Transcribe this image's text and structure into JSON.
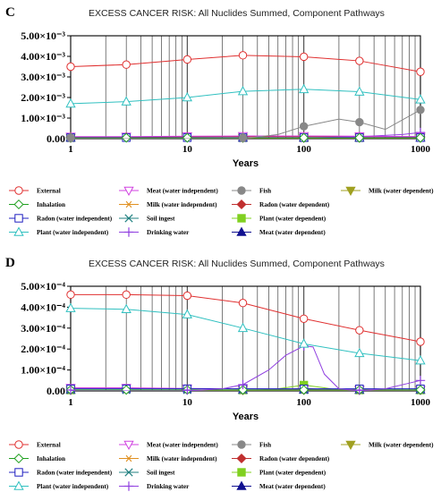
{
  "chart_data": [
    {
      "panel": "C",
      "type": "line",
      "title": "EXCESS CANCER RISK: All Nuclides Summed, Component Pathways",
      "xlabel": "Years",
      "ylabel": "",
      "xscale": "log",
      "xlim": [
        1,
        1000
      ],
      "ylim": [
        0,
        0.005
      ],
      "y_exp": -3,
      "x_ticks": [
        1,
        10,
        100,
        1000
      ],
      "x_tick_labels": [
        "1",
        "10",
        "100",
        "1000"
      ],
      "y_ticks": [
        0,
        0.001,
        0.002,
        0.003,
        0.004,
        0.005
      ],
      "y_tick_labels": [
        "0.00",
        "1.00×10⁻³",
        "2.00×10⁻³",
        "3.00×10⁻³",
        "4.00×10⁻³",
        "5.00×10⁻³"
      ],
      "grid": "vertical",
      "legend_position": "bottom",
      "series": [
        {
          "name": "External",
          "color": "#e03030",
          "marker": "circle",
          "x": [
            1,
            3,
            10,
            30,
            100,
            300,
            1000
          ],
          "y": [
            0.0035,
            0.0036,
            0.00385,
            0.00405,
            0.00398,
            0.00378,
            0.00325
          ]
        },
        {
          "name": "Plant (water independent)",
          "color": "#30c0c0",
          "marker": "triangle-up",
          "x": [
            1,
            3,
            10,
            30,
            100,
            300,
            1000
          ],
          "y": [
            0.0017,
            0.0018,
            0.002,
            0.0023,
            0.0024,
            0.00228,
            0.0019
          ]
        },
        {
          "name": "Fish",
          "color": "#888888",
          "marker": "filled-circle",
          "x": [
            1,
            30,
            60,
            100,
            200,
            300,
            500,
            1000
          ],
          "y": [
            0,
            0,
            0.0002,
            0.0006,
            0.00095,
            0.0008,
            0.00045,
            0.0014
          ]
        },
        {
          "name": "Inhalation",
          "color": "#20a020",
          "marker": "diamond",
          "x": [
            1,
            3,
            10,
            30,
            100,
            300,
            1000
          ],
          "y": [
            3e-05,
            3e-05,
            3e-05,
            3e-05,
            3e-05,
            3e-05,
            3e-05
          ]
        },
        {
          "name": "Radon (water independent)",
          "color": "#2020c0",
          "marker": "square",
          "x": [
            1,
            3,
            10,
            30,
            100,
            300,
            1000
          ],
          "y": [
            5e-05,
            5e-05,
            5e-05,
            5e-05,
            5e-05,
            5e-05,
            5e-05
          ]
        },
        {
          "name": "Meat (water independent)",
          "color": "#d040e0",
          "marker": "triangle-down",
          "x": [
            1,
            3,
            10,
            30,
            100,
            300,
            1000
          ],
          "y": [
            0.0001,
            0.0001,
            0.00012,
            0.00013,
            0.00013,
            0.00012,
            0.0001
          ]
        },
        {
          "name": "Milk (water independent)",
          "color": "#e09020",
          "marker": "asterisk",
          "x": [
            1,
            3,
            10,
            30,
            100,
            300,
            1000
          ],
          "y": [
            2e-05,
            2e-05,
            2e-05,
            2e-05,
            2e-05,
            2e-05,
            2e-05
          ]
        },
        {
          "name": "Soil ingest",
          "color": "#208080",
          "marker": "x",
          "x": [
            1,
            3,
            10,
            30,
            100,
            300,
            1000
          ],
          "y": [
            1e-05,
            1e-05,
            1e-05,
            1e-05,
            1e-05,
            1e-05,
            1e-05
          ]
        },
        {
          "name": "Drinking water",
          "color": "#9040e0",
          "marker": "plus",
          "x": [
            1,
            30,
            100,
            300,
            700,
            1000
          ],
          "y": [
            0,
            0,
            3e-05,
            0.0001,
            0.0002,
            0.0003
          ]
        },
        {
          "name": "Radon (water dependent)",
          "color": "#c03030",
          "marker": "filled-diamond",
          "x": [
            1,
            3,
            10,
            30,
            100,
            300,
            1000
          ],
          "y": [
            8e-05,
            8e-05,
            9e-05,
            0.0001,
            0.0001,
            0.0001,
            9e-05
          ]
        },
        {
          "name": "Plant (water dependent)",
          "color": "#80d020",
          "marker": "filled-square",
          "x": [
            1,
            30,
            100,
            300,
            1000
          ],
          "y": [
            0,
            0,
            2e-05,
            4e-05,
            6e-05
          ]
        },
        {
          "name": "Meat (water dependent)",
          "color": "#101090",
          "marker": "filled-triangle-up",
          "x": [
            1,
            30,
            100,
            300,
            1000
          ],
          "y": [
            0,
            0,
            1e-05,
            1e-05,
            2e-05
          ]
        },
        {
          "name": "Milk (water dependent)",
          "color": "#a0a020",
          "marker": "filled-triangle-down",
          "x": [
            1,
            30,
            100,
            300,
            1000
          ],
          "y": [
            0,
            0,
            1e-05,
            2e-05,
            3e-05
          ]
        }
      ]
    },
    {
      "panel": "D",
      "type": "line",
      "title": "EXCESS CANCER RISK: All Nuclides Summed, Component Pathways",
      "xlabel": "Years",
      "ylabel": "",
      "xscale": "log",
      "xlim": [
        1,
        1000
      ],
      "ylim": [
        0,
        0.0005
      ],
      "y_exp": -4,
      "x_ticks": [
        1,
        10,
        100,
        1000
      ],
      "x_tick_labels": [
        "1",
        "10",
        "100",
        "1000"
      ],
      "y_ticks": [
        0,
        0.0001,
        0.0002,
        0.0003,
        0.0004,
        0.0005
      ],
      "y_tick_labels": [
        "0.00",
        "1.00×10⁻⁴",
        "2.00×10⁻⁴",
        "3.00×10⁻⁴",
        "4.00×10⁻⁴",
        "5.00×10⁻⁴"
      ],
      "grid": "vertical",
      "legend_position": "bottom",
      "series": [
        {
          "name": "External",
          "color": "#e03030",
          "marker": "circle",
          "x": [
            1,
            3,
            10,
            30,
            100,
            300,
            1000
          ],
          "y": [
            0.00046,
            0.00046,
            0.000455,
            0.00042,
            0.000345,
            0.00029,
            0.000235
          ]
        },
        {
          "name": "Plant (water independent)",
          "color": "#30c0c0",
          "marker": "triangle-up",
          "x": [
            1,
            3,
            10,
            30,
            100,
            300,
            1000
          ],
          "y": [
            0.000395,
            0.00039,
            0.000365,
            0.0003,
            0.000225,
            0.00018,
            0.000145
          ]
        },
        {
          "name": "Drinking water",
          "color": "#9040e0",
          "marker": "plus",
          "x": [
            1,
            10,
            20,
            30,
            50,
            70,
            100,
            120,
            150,
            200,
            300,
            500,
            1000
          ],
          "y": [
            0,
            0,
            1e-05,
            3e-05,
            0.0001,
            0.00017,
            0.000215,
            0.00021,
            8e-05,
            1e-05,
            0,
            1e-05,
            5e-05
          ]
        },
        {
          "name": "Inhalation",
          "color": "#20a020",
          "marker": "diamond",
          "x": [
            1,
            3,
            10,
            30,
            100,
            300,
            1000
          ],
          "y": [
            5e-06,
            5e-06,
            5e-06,
            5e-06,
            5e-06,
            5e-06,
            5e-06
          ]
        },
        {
          "name": "Radon (water independent)",
          "color": "#2020c0",
          "marker": "square",
          "x": [
            1,
            3,
            10,
            30,
            100,
            300,
            1000
          ],
          "y": [
            1e-05,
            1e-05,
            1e-05,
            1e-05,
            1e-05,
            1e-05,
            1e-05
          ]
        },
        {
          "name": "Meat (water independent)",
          "color": "#d040e0",
          "marker": "triangle-down",
          "x": [
            1,
            3,
            10,
            30,
            100,
            300,
            1000
          ],
          "y": [
            1.5e-05,
            1.5e-05,
            1.2e-05,
            1e-05,
            8e-06,
            6e-06,
            5e-06
          ]
        },
        {
          "name": "Milk (water independent)",
          "color": "#e09020",
          "marker": "asterisk",
          "x": [
            1,
            3,
            10,
            30,
            100,
            300,
            1000
          ],
          "y": [
            3e-06,
            3e-06,
            3e-06,
            3e-06,
            3e-06,
            3e-06,
            3e-06
          ]
        },
        {
          "name": "Soil ingest",
          "color": "#208080",
          "marker": "x",
          "x": [
            1,
            3,
            10,
            30,
            100,
            300,
            1000
          ],
          "y": [
            2e-06,
            2e-06,
            2e-06,
            2e-06,
            2e-06,
            2e-06,
            2e-06
          ]
        },
        {
          "name": "Fish",
          "color": "#888888",
          "marker": "filled-circle",
          "x": [
            1,
            30,
            100,
            300,
            1000
          ],
          "y": [
            0,
            0,
            5e-06,
            4e-06,
            2e-06
          ]
        },
        {
          "name": "Radon (water dependent)",
          "color": "#c03030",
          "marker": "filled-diamond",
          "x": [
            1,
            30,
            100,
            300,
            1000
          ],
          "y": [
            0,
            0,
            3e-06,
            2e-06,
            1e-06
          ]
        },
        {
          "name": "Plant (water dependent)",
          "color": "#80d020",
          "marker": "filled-square",
          "x": [
            1,
            30,
            60,
            100,
            150,
            200,
            300,
            1000
          ],
          "y": [
            0,
            0,
            1e-05,
            2.8e-05,
            1.5e-05,
            3e-06,
            0,
            0
          ]
        },
        {
          "name": "Meat (water dependent)",
          "color": "#101090",
          "marker": "filled-triangle-up",
          "x": [
            1,
            30,
            100,
            300,
            1000
          ],
          "y": [
            0,
            0,
            6e-06,
            1e-06,
            0
          ]
        },
        {
          "name": "Milk (water dependent)",
          "color": "#a0a020",
          "marker": "filled-triangle-down",
          "x": [
            1,
            30,
            100,
            150,
            300,
            1000
          ],
          "y": [
            0,
            0,
            1.2e-05,
            8e-06,
            0,
            0
          ]
        }
      ]
    }
  ],
  "legend": {
    "items": [
      {
        "name": "External",
        "color": "#e03030",
        "marker": "circle"
      },
      {
        "name": "Meat (water independent)",
        "color": "#d040e0",
        "marker": "triangle-down"
      },
      {
        "name": "Fish",
        "color": "#888888",
        "marker": "filled-circle"
      },
      {
        "name": "Milk (water dependent)",
        "color": "#a0a020",
        "marker": "filled-triangle-down"
      },
      {
        "name": "Inhalation",
        "color": "#20a020",
        "marker": "diamond"
      },
      {
        "name": "Milk (water independent)",
        "color": "#e09020",
        "marker": "asterisk"
      },
      {
        "name": "Radon (water dependent)",
        "color": "#c03030",
        "marker": "filled-diamond"
      },
      {
        "name": "Radon (water independent)",
        "color": "#2020c0",
        "marker": "square"
      },
      {
        "name": "Soil ingest",
        "color": "#208080",
        "marker": "x"
      },
      {
        "name": "Plant (water dependent)",
        "color": "#80d020",
        "marker": "filled-square"
      },
      {
        "name": "Plant (water independent)",
        "color": "#30c0c0",
        "marker": "triangle-up"
      },
      {
        "name": "Drinking water",
        "color": "#9040e0",
        "marker": "plus"
      },
      {
        "name": "Meat (water dependent)",
        "color": "#101090",
        "marker": "filled-triangle-up"
      }
    ]
  }
}
